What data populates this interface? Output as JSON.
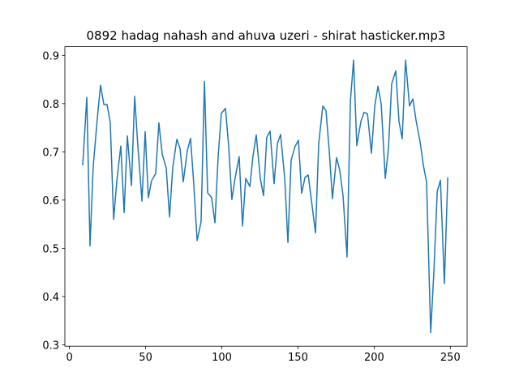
{
  "chart_data": {
    "type": "line",
    "title": "0892 hadag nahash and ahuva uzeri - shirat hasticker.mp3",
    "color": "#1f77b4",
    "x": [
      8.7,
      11.4,
      13.5,
      15.6,
      18.3,
      20.4,
      22.6,
      24.7,
      26.8,
      29.0,
      31.1,
      33.7,
      35.9,
      38.0,
      40.7,
      42.8,
      44.9,
      47.6,
      49.7,
      51.8,
      53.9,
      56.6,
      58.7,
      60.9,
      63.5,
      65.7,
      67.8,
      70.5,
      72.6,
      74.7,
      77.4,
      79.5,
      81.6,
      83.8,
      86.4,
      88.6,
      90.7,
      93.3,
      95.5,
      97.6,
      99.7,
      102.4,
      104.5,
      106.6,
      108.8,
      111.4,
      113.6,
      115.7,
      118.4,
      120.5,
      122.6,
      125.3,
      127.4,
      129.5,
      131.7,
      134.3,
      136.5,
      138.6,
      141.3,
      143.4,
      145.5,
      148.2,
      150.3,
      152.4,
      154.6,
      156.7,
      159.4,
      161.5,
      163.6,
      166.3,
      168.4,
      170.5,
      172.6,
      175.3,
      177.4,
      179.6,
      182.2,
      184.4,
      186.5,
      188.6,
      191.3,
      193.4,
      195.6,
      198.2,
      200.4,
      202.5,
      204.6,
      207.3,
      209.4,
      211.5,
      214.2,
      216.3,
      218.4,
      220.6,
      223.2,
      225.4,
      227.5,
      230.2,
      232.3,
      234.4,
      237.1,
      239.2,
      241.4,
      243.5,
      246.1,
      248.3
    ],
    "values": [
      0.672,
      0.813,
      0.505,
      0.67,
      0.77,
      0.838,
      0.798,
      0.798,
      0.76,
      0.56,
      0.64,
      0.712,
      0.574,
      0.733,
      0.63,
      0.815,
      0.712,
      0.598,
      0.742,
      0.605,
      0.64,
      0.655,
      0.76,
      0.695,
      0.667,
      0.565,
      0.668,
      0.726,
      0.707,
      0.638,
      0.703,
      0.728,
      0.633,
      0.516,
      0.555,
      0.846,
      0.615,
      0.605,
      0.553,
      0.69,
      0.78,
      0.79,
      0.712,
      0.601,
      0.647,
      0.69,
      0.546,
      0.645,
      0.628,
      0.692,
      0.735,
      0.644,
      0.609,
      0.73,
      0.743,
      0.634,
      0.717,
      0.736,
      0.645,
      0.512,
      0.683,
      0.712,
      0.724,
      0.614,
      0.647,
      0.652,
      0.585,
      0.532,
      0.717,
      0.795,
      0.785,
      0.703,
      0.603,
      0.688,
      0.662,
      0.608,
      0.482,
      0.805,
      0.89,
      0.713,
      0.763,
      0.782,
      0.779,
      0.697,
      0.795,
      0.836,
      0.8,
      0.645,
      0.708,
      0.841,
      0.868,
      0.763,
      0.727,
      0.89,
      0.795,
      0.81,
      0.765,
      0.72,
      0.672,
      0.637,
      0.325,
      0.452,
      0.618,
      0.641,
      0.427,
      0.647
    ],
    "xlim": [
      -3,
      261
    ],
    "ylim": [
      0.297,
      0.918
    ],
    "xticks": [
      0,
      50,
      100,
      150,
      200,
      250
    ],
    "yticks": [
      0.3,
      0.4,
      0.5,
      0.6,
      0.7,
      0.8,
      0.9
    ]
  }
}
